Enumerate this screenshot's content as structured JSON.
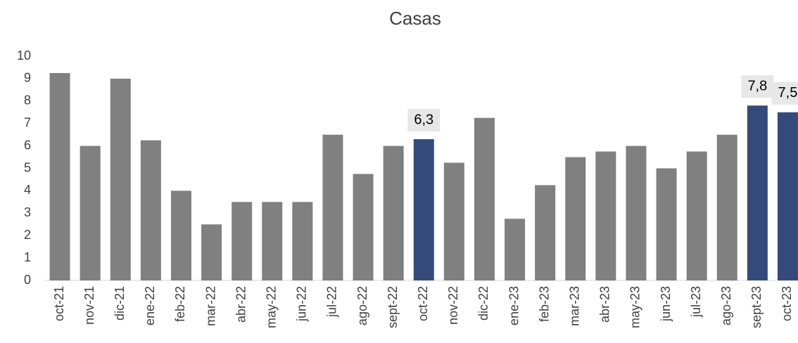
{
  "chart_data": {
    "type": "bar",
    "title": "Casas",
    "categories": [
      "oct-21",
      "nov-21",
      "dic-21",
      "ene-22",
      "feb-22",
      "mar-22",
      "abr-22",
      "may-22",
      "jun-22",
      "jul-22",
      "ago-22",
      "sept-22",
      "oct-22",
      "nov-22",
      "dic-22",
      "ene-23",
      "feb-23",
      "mar-23",
      "abr-23",
      "may-23",
      "jun-23",
      "jul-23",
      "ago-23",
      "sept-23",
      "oct-23"
    ],
    "values": [
      9.25,
      6.0,
      9.0,
      6.25,
      4.0,
      2.5,
      3.5,
      3.5,
      3.5,
      6.5,
      4.75,
      6.0,
      6.3,
      5.25,
      7.25,
      2.75,
      4.25,
      5.5,
      5.75,
      6.0,
      5.0,
      5.75,
      6.5,
      7.8,
      7.5
    ],
    "value_labels": [
      null,
      null,
      null,
      null,
      null,
      null,
      null,
      null,
      null,
      null,
      null,
      null,
      "6,3",
      null,
      null,
      null,
      null,
      null,
      null,
      null,
      null,
      null,
      null,
      "7,8",
      "7,5"
    ],
    "colors": [
      "#808080",
      "#808080",
      "#808080",
      "#808080",
      "#808080",
      "#808080",
      "#808080",
      "#808080",
      "#808080",
      "#808080",
      "#808080",
      "#808080",
      "#344a7c",
      "#808080",
      "#808080",
      "#808080",
      "#808080",
      "#808080",
      "#808080",
      "#808080",
      "#808080",
      "#808080",
      "#808080",
      "#344a7c",
      "#344a7c"
    ],
    "ylim": [
      0,
      10
    ],
    "yticks": [
      0,
      1,
      2,
      3,
      4,
      5,
      6,
      7,
      8,
      9,
      10
    ],
    "grid": false
  }
}
